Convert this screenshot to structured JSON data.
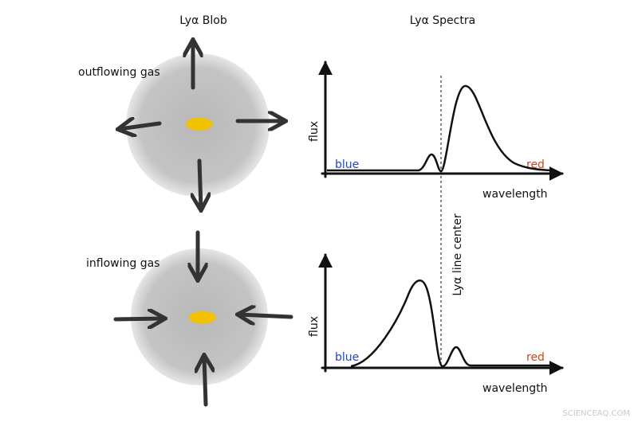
{
  "headers": {
    "blob": "Lyα Blob",
    "spectra": "Lyα Spectra"
  },
  "panels": [
    {
      "label": "outflowing gas",
      "y_axis": "flux",
      "x_axis": "wavelength",
      "blue": "blue",
      "red": "red"
    },
    {
      "label": "inflowing gas",
      "y_axis": "flux",
      "x_axis": "wavelength",
      "blue": "blue",
      "red": "red"
    }
  ],
  "line_center": "Lyα line center",
  "watermark": "SCIENCEAQ.COM"
}
